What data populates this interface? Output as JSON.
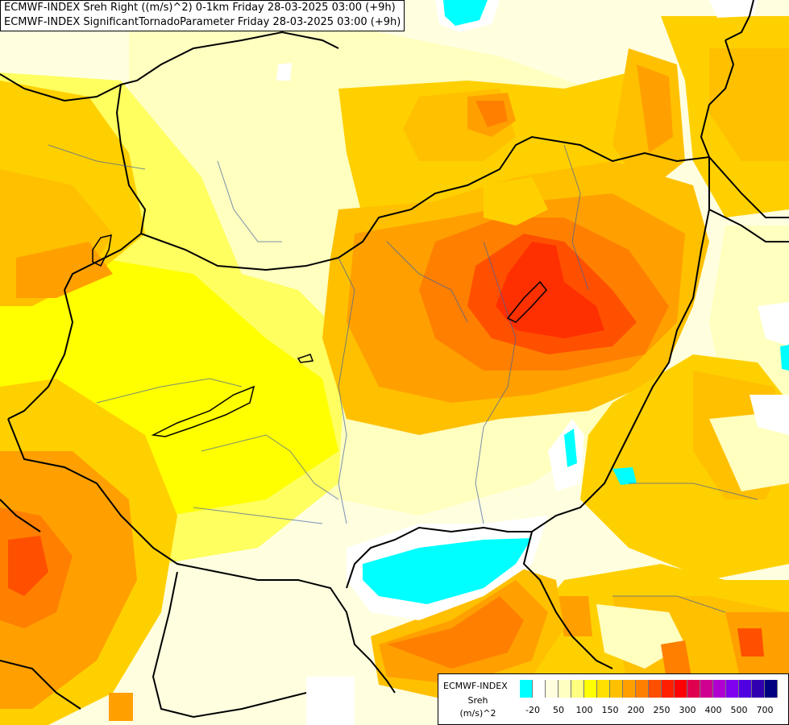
{
  "titles": {
    "line1": "ECMWF-INDEX Sreh Right ((m/s)^2) 0-1km Friday 28-03-2025 03:00 (+9h)",
    "line2": "ECMWF-INDEX SignificantTornadoParameter Friday 28-03-2025 03:00 (+9h)"
  },
  "legend": {
    "name": "ECMWF-INDEX",
    "variable": "Sreh",
    "unit": "(m/s)^2",
    "colors": [
      "#00ffff",
      "#ffffff",
      "#ffffe0",
      "#ffffc0",
      "#ffff80",
      "#ffff00",
      "#ffe000",
      "#ffc000",
      "#ffa000",
      "#ff8000",
      "#ff5000",
      "#ff2000",
      "#ff0000",
      "#e00050",
      "#d00090",
      "#b000d0",
      "#8000f0",
      "#5000e0",
      "#3000b0",
      "#000080"
    ],
    "ticks": [
      "-20",
      "50",
      "100",
      "150",
      "200",
      "250",
      "300",
      "400",
      "500",
      "700"
    ]
  }
}
